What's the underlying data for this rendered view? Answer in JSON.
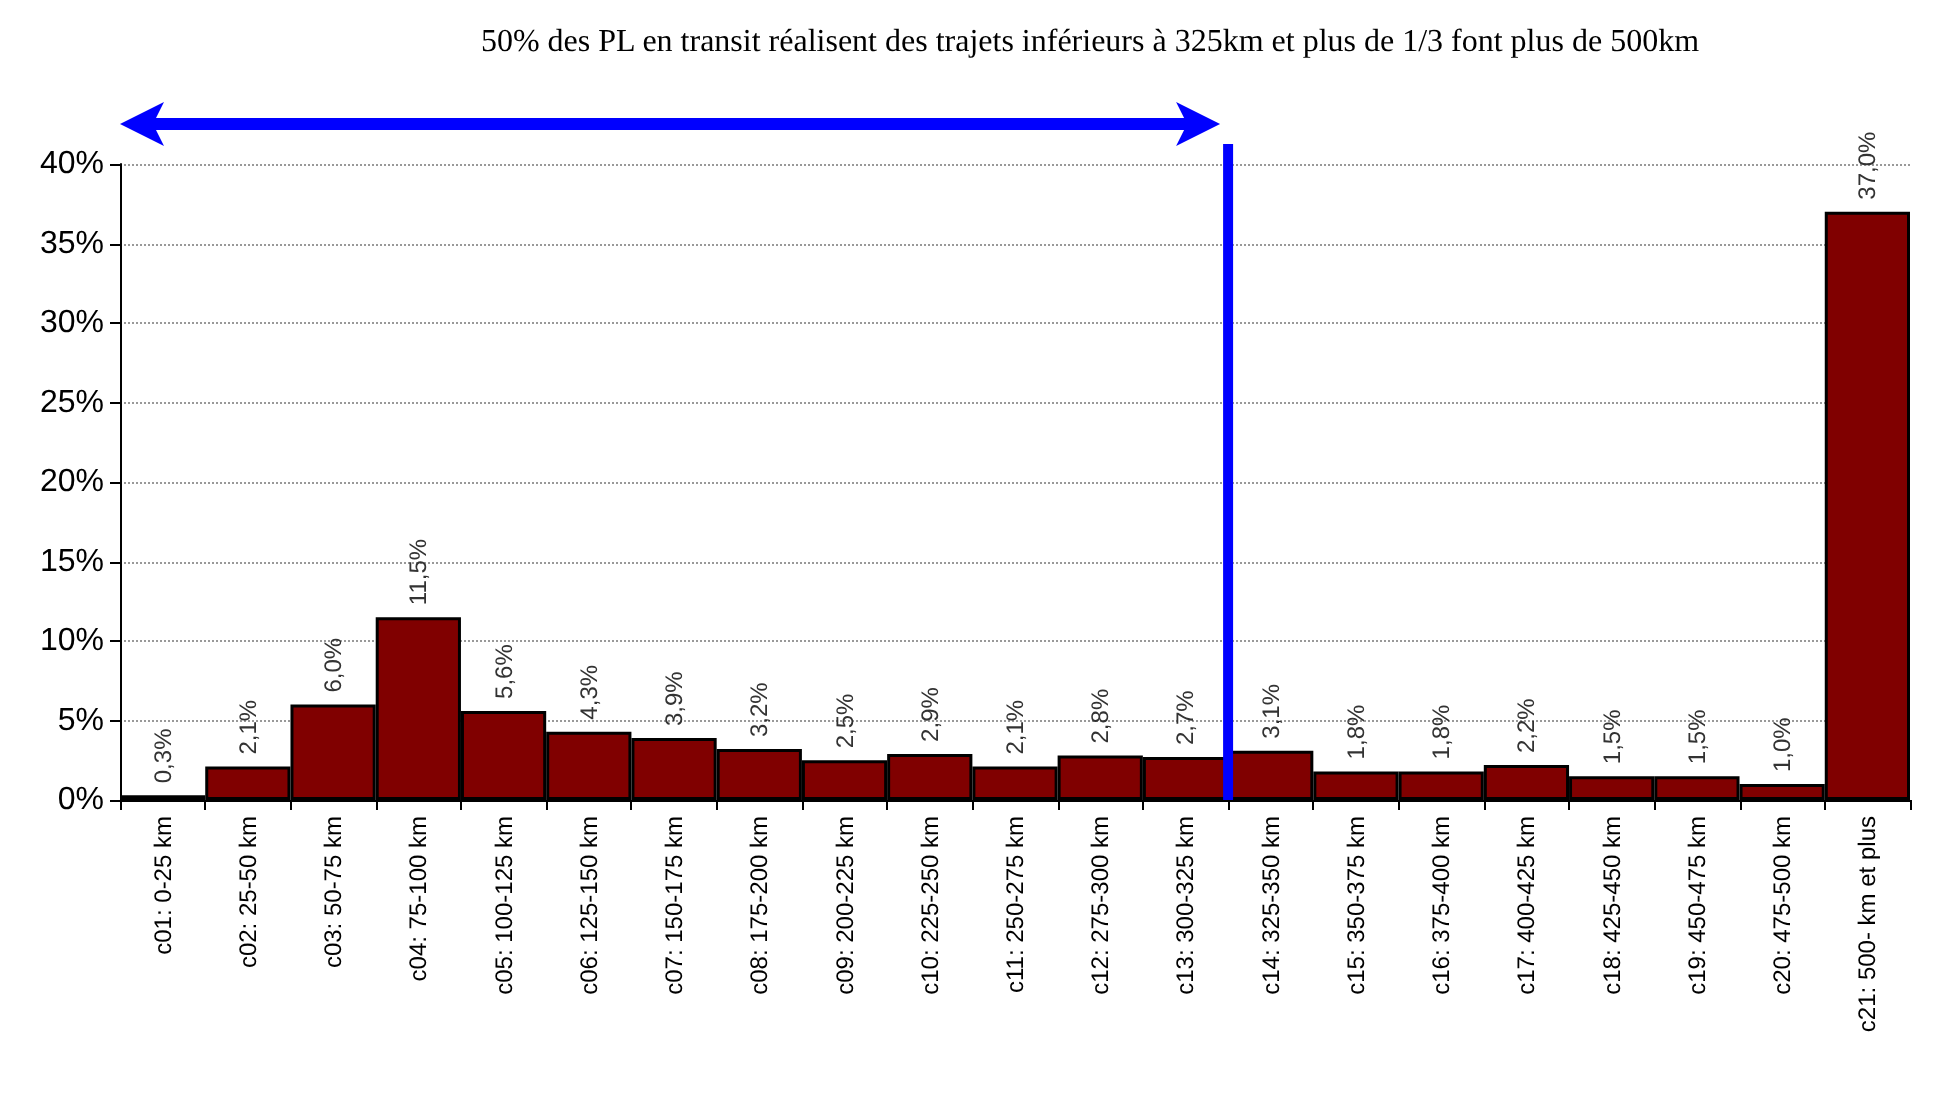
{
  "chart_data": {
    "type": "bar",
    "title": "50% des PL en transit réalisent des trajets inférieurs à 325km et plus de 1/3 font plus de 500km",
    "categories": [
      "c01: 0-25 km",
      "c02: 25-50 km",
      "c03: 50-75 km",
      "c04: 75-100 km",
      "c05: 100-125 km",
      "c06: 125-150 km",
      "c07: 150-175 km",
      "c08: 175-200 km",
      "c09: 200-225 km",
      "c10: 225-250 km",
      "c11: 250-275 km",
      "c12: 275-300 km",
      "c13: 300-325 km",
      "c14: 325-350 km",
      "c15: 350-375 km",
      "c16: 375-400 km",
      "c17: 400-425 km",
      "c18: 425-450 km",
      "c19: 450-475 km",
      "c20: 475-500 km",
      "c21: 500- km et plus"
    ],
    "values": [
      0.3,
      2.1,
      6.0,
      11.5,
      5.6,
      4.3,
      3.9,
      3.2,
      2.5,
      2.9,
      2.1,
      2.8,
      2.7,
      3.1,
      1.8,
      1.8,
      2.2,
      1.5,
      1.5,
      1.0,
      37.0
    ],
    "value_labels": [
      "0,3%",
      "2,1%",
      "6,0%",
      "11,5%",
      "5,6%",
      "4,3%",
      "3,9%",
      "3,2%",
      "2,5%",
      "2,9%",
      "2,1%",
      "2,8%",
      "2,7%",
      "3,1%",
      "1,8%",
      "1,8%",
      "2,2%",
      "1,5%",
      "1,5%",
      "1,0%",
      "37,0%"
    ],
    "color": "#800000",
    "ylim": [
      0,
      40
    ],
    "yticks": [
      {
        "value": 0,
        "label": "0%"
      },
      {
        "value": 5,
        "label": "5%"
      },
      {
        "value": 10,
        "label": "10%"
      },
      {
        "value": 15,
        "label": "15%"
      },
      {
        "value": 20,
        "label": "20%"
      },
      {
        "value": 25,
        "label": "25%"
      },
      {
        "value": 30,
        "label": "30%"
      },
      {
        "value": 35,
        "label": "35%"
      },
      {
        "value": 40,
        "label": "40%"
      }
    ],
    "grid": "y",
    "ref_lines": [
      {
        "axis": "x",
        "value": "c14: 325-350 km",
        "color": "#0000ff"
      }
    ]
  }
}
